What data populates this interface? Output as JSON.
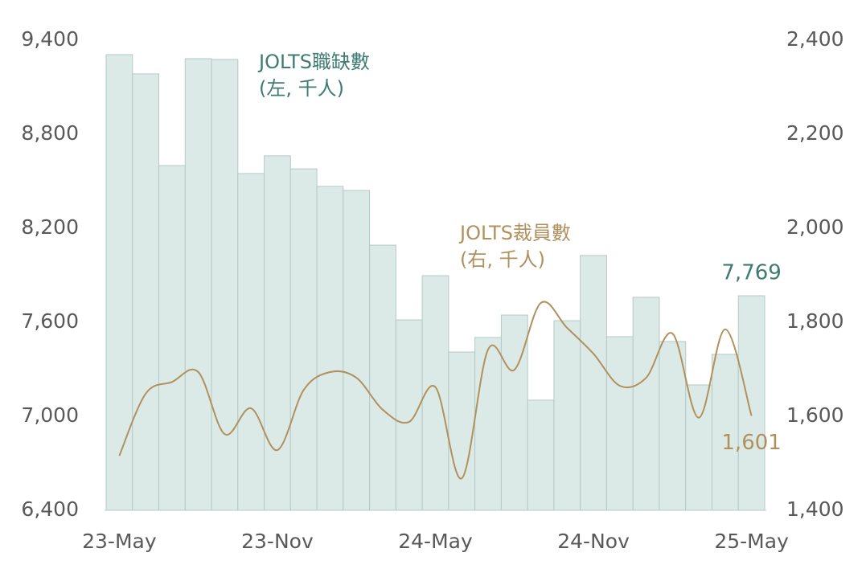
{
  "chart_data": {
    "type": "bar-line",
    "categories": [
      "23-May",
      null,
      null,
      null,
      null,
      null,
      "23-Nov",
      null,
      null,
      null,
      null,
      null,
      "24-May",
      null,
      null,
      null,
      null,
      null,
      "24-Nov",
      null,
      null,
      null,
      null,
      null,
      "25-May"
    ],
    "series": [
      {
        "name": "JOLTS職缺數",
        "unit_label": "(左, 千人)",
        "type": "bar",
        "axis": "y",
        "color": "#dceae7",
        "edge_color": "#b5c9c4",
        "label_color": "#3e7b72",
        "values": [
          9308,
          9185,
          8600,
          9282,
          9277,
          8549,
          8662,
          8579,
          8467,
          8441,
          8092,
          7615,
          7897,
          7410,
          7503,
          7646,
          7103,
          7610,
          8026,
          7508,
          7759,
          7477,
          7200,
          7395,
          7769
        ],
        "value_labels": [
          null,
          null,
          null,
          null,
          null,
          null,
          null,
          null,
          null,
          null,
          null,
          null,
          null,
          null,
          null,
          null,
          null,
          null,
          null,
          null,
          null,
          null,
          null,
          null,
          "7,769"
        ]
      },
      {
        "name": "JOLTS裁員數",
        "unit_label": "(右, 千人)",
        "type": "line",
        "axis": "y2",
        "color": "#b0915e",
        "label_color": "#b0915e",
        "values": [
          1516,
          1648,
          1673,
          1694,
          1562,
          1617,
          1528,
          1656,
          1694,
          1682,
          1614,
          1588,
          1662,
          1468,
          1742,
          1699,
          1841,
          1788,
          1733,
          1665,
          1682,
          1776,
          1597,
          1785,
          1601
        ],
        "value_labels": [
          null,
          null,
          null,
          null,
          null,
          null,
          null,
          null,
          null,
          null,
          null,
          null,
          null,
          null,
          null,
          null,
          null,
          null,
          null,
          null,
          null,
          null,
          null,
          null,
          "1,601"
        ]
      }
    ],
    "ylim": [
      6400,
      9400
    ],
    "yticks": [
      {
        "value": 6400,
        "label": "6,400"
      },
      {
        "value": 7000,
        "label": "7,000"
      },
      {
        "value": 7600,
        "label": "7,600"
      },
      {
        "value": 8200,
        "label": "8,200"
      },
      {
        "value": 8800,
        "label": "8,800"
      },
      {
        "value": 9400,
        "label": "9,400"
      }
    ],
    "y2lim": [
      1400,
      2400
    ],
    "y2ticks": [
      {
        "value": 1400,
        "label": "1,400"
      },
      {
        "value": 1600,
        "label": "1,600"
      },
      {
        "value": 1800,
        "label": "1,800"
      },
      {
        "value": 2000,
        "label": "2,000"
      },
      {
        "value": 2200,
        "label": "2,200"
      },
      {
        "value": 2400,
        "label": "2,400"
      }
    ],
    "grid": false
  }
}
